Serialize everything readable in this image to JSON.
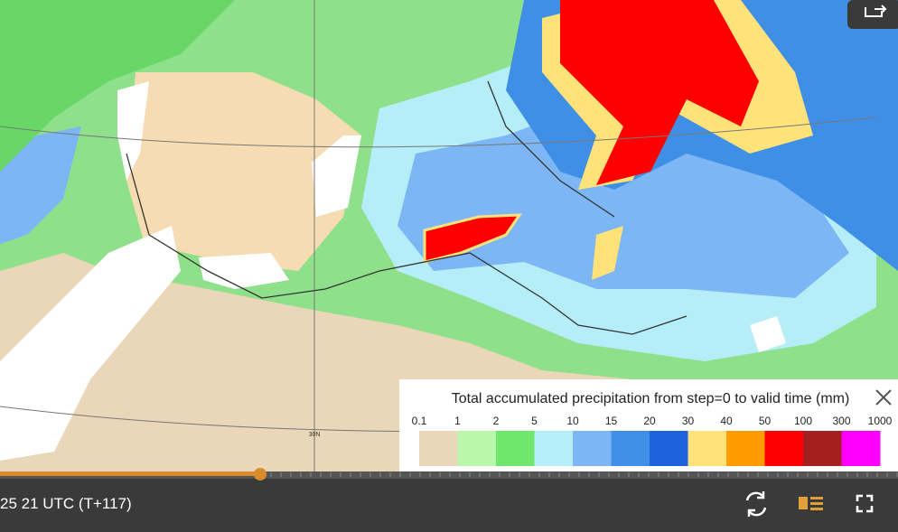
{
  "legend": {
    "title": "Total accumulated precipitation from step=0 to valid time (mm)",
    "labels": [
      "0.1",
      "1",
      "2",
      "5",
      "10",
      "15",
      "20",
      "30",
      "40",
      "50",
      "100",
      "300",
      "1000"
    ],
    "colors": [
      "#ead6b8",
      "#b9f7ac",
      "#6fe66c",
      "#b5edf8",
      "#7cb6f5",
      "#3f8fe6",
      "#1f62de",
      "#ffe27a",
      "#ff9b00",
      "#ff0000",
      "#a41f1f",
      "#ff00ff"
    ]
  },
  "map": {
    "latitude_label": "30N"
  },
  "controls": {
    "time_label": "25 21 UTC (T+117)"
  }
}
